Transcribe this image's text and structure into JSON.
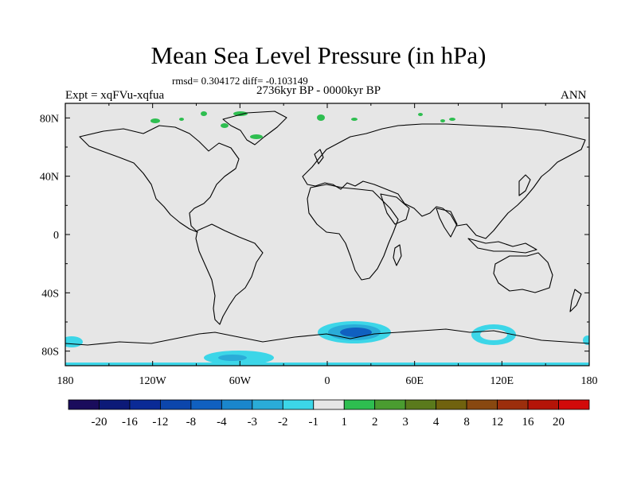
{
  "header": {
    "title": "Mean Sea Level Pressure (in hPa)",
    "stats": "rmsd= 0.304172 diff= -0.103149",
    "period": "2736kyr BP - 0000kyr BP",
    "experiment": "Expt = xqFVu-xqfua",
    "season": "ANN"
  },
  "axes": {
    "lat_labels": [
      "80N",
      "40N",
      "0",
      "40S",
      "80S"
    ],
    "lon_labels": [
      "180",
      "120W",
      "60W",
      "0",
      "60E",
      "120E",
      "180"
    ]
  },
  "colorbar": {
    "labels": [
      "-20",
      "-16",
      "-12",
      "-8",
      "-4",
      "-3",
      "-2",
      "-1",
      "1",
      "2",
      "3",
      "4",
      "8",
      "12",
      "16",
      "20"
    ],
    "colors": [
      "#1a0c5c",
      "#0c1a78",
      "#0a2a96",
      "#0c46ac",
      "#1060c0",
      "#1a86cc",
      "#2aacd8",
      "#3cd6e8",
      "#e6e6e6",
      "#2ebe50",
      "#4a9c30",
      "#5a7a1c",
      "#70620e",
      "#884810",
      "#9c2e0c",
      "#b41408",
      "#d20a0a"
    ]
  },
  "colors": {
    "ocean": "#e6e6e6",
    "anom_neg_light": "#3cd6e8",
    "anom_neg_mid": "#2aacd8",
    "anom_neg_dark": "#1060c0",
    "anom_pos_light": "#2ebe50"
  }
}
